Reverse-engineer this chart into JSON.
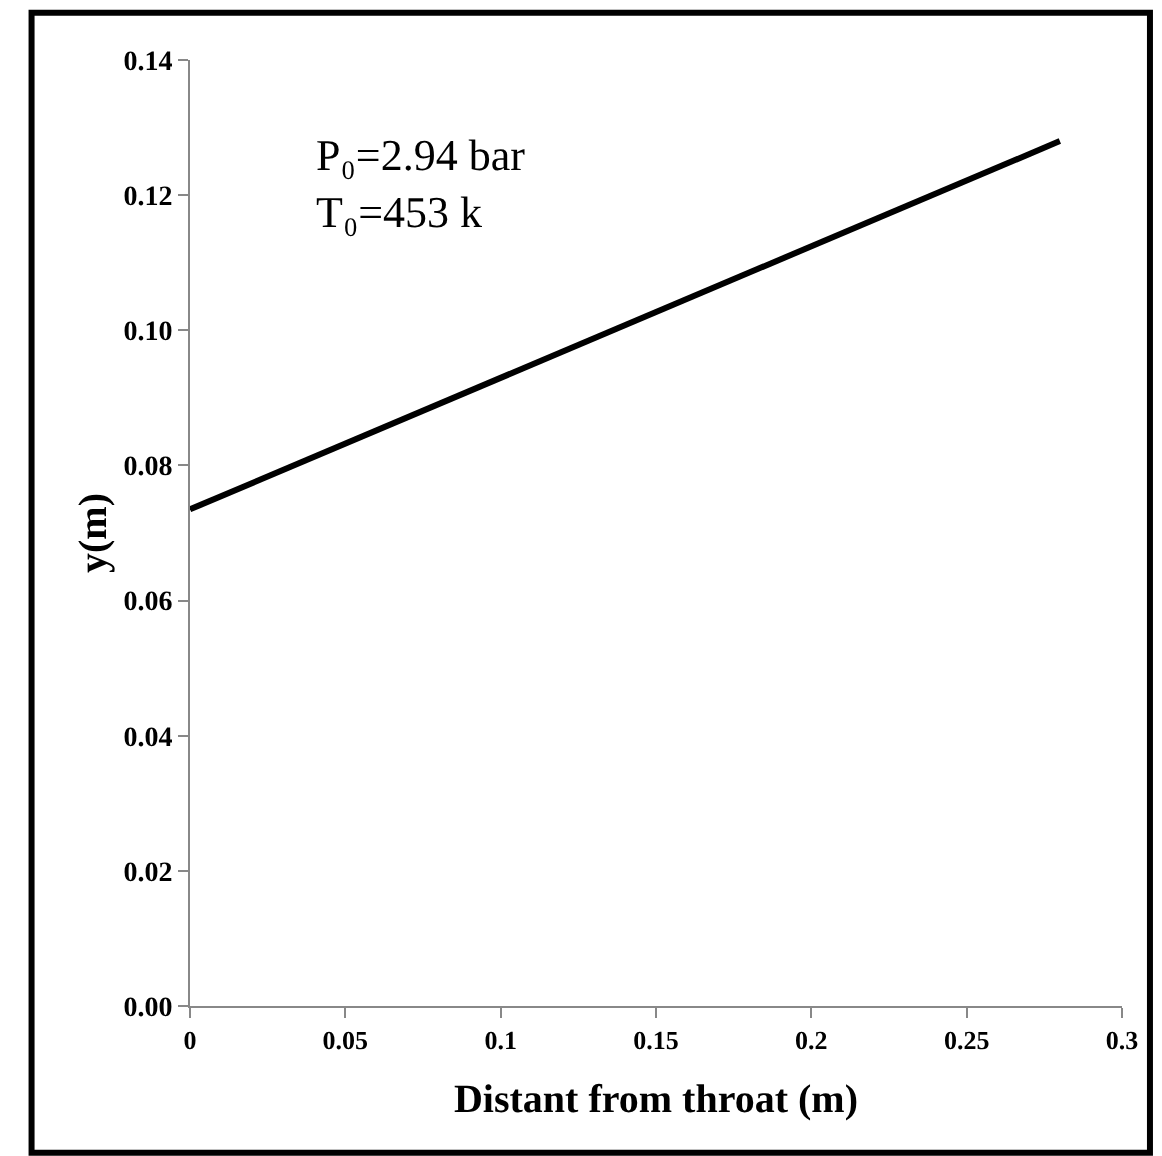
{
  "chart_data": {
    "type": "line",
    "xlabel": "Distant from throat (m)",
    "ylabel": "y(m)",
    "x": [
      0,
      0.28
    ],
    "series": [
      {
        "color": "#000000",
        "values": [
          0.0735,
          0.128
        ]
      }
    ],
    "xlim": [
      0,
      0.3
    ],
    "xticks": [
      0,
      0.05,
      0.1,
      0.15,
      0.2,
      0.25,
      0.3
    ],
    "ylim": [
      0,
      0.14
    ],
    "yticks": [
      {
        "value": 0,
        "label": "0.00"
      },
      {
        "value": 0.02,
        "label": "0.02"
      },
      {
        "value": 0.04,
        "label": "0.04"
      },
      {
        "value": 0.06,
        "label": "0.06"
      },
      {
        "value": 0.08,
        "label": "0.08"
      },
      {
        "value": 0.1,
        "label": "0.10"
      },
      {
        "value": 0.12,
        "label": "0.12"
      },
      {
        "value": 0.14,
        "label": "0.14"
      }
    ],
    "annotations": [
      "P₀=2.94 bar\nT₀=453 k"
    ],
    "legend": false,
    "marker": "none",
    "line_style": "solid"
  }
}
